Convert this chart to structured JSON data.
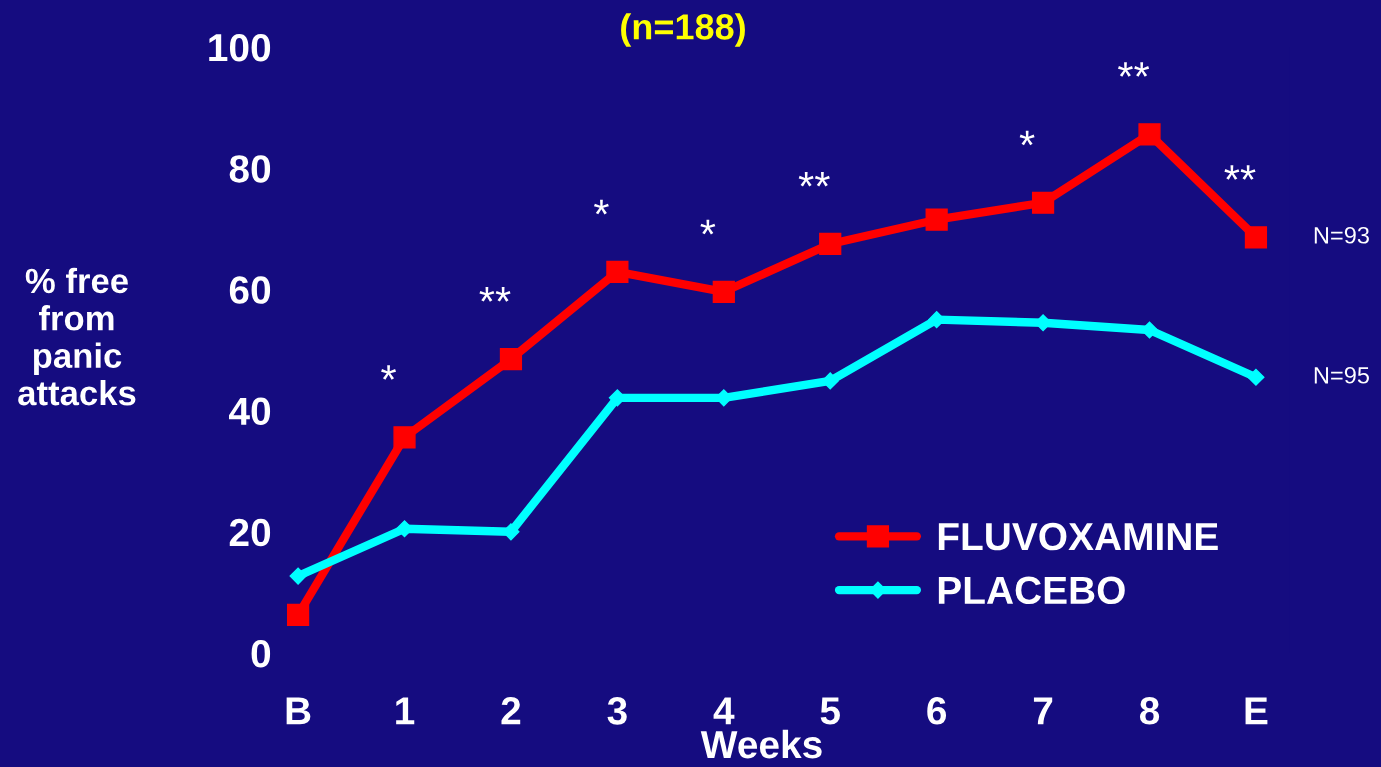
{
  "chart_data": {
    "type": "line",
    "title": "(n=188)",
    "xlabel": "Weeks",
    "ylabel": "% free\nfrom\npanic\nattacks",
    "categories": [
      "B",
      "1",
      "2",
      "3",
      "4",
      "5",
      "6",
      "7",
      "8",
      "E"
    ],
    "ylim": [
      0,
      100
    ],
    "yticks": [
      0,
      20,
      40,
      60,
      80,
      100
    ],
    "grid": false,
    "legend": "bottom right",
    "line_style": "solid",
    "series": [
      {
        "name": "FLUVOXAMINE",
        "color": "#ff0000",
        "marker": "square",
        "values": [
          6.3,
          35.6,
          48.5,
          62.9,
          59.6,
          67.5,
          71.5,
          74.3,
          85.6,
          68.6
        ]
      },
      {
        "name": "PLACEBO",
        "color": "#00ffff",
        "marker": "diamond",
        "values": [
          12.7,
          20.5,
          20,
          42.1,
          42.1,
          44.9,
          55,
          54.5,
          53.3,
          45.5
        ]
      }
    ],
    "annotations": [
      {
        "text": "*",
        "x": "1",
        "y": 35.6
      },
      {
        "text": "**",
        "x": "2",
        "y": 48.5
      },
      {
        "text": "*",
        "x": "3",
        "y": 62.9
      },
      {
        "text": "*",
        "x": "4",
        "y": 59.6
      },
      {
        "text": "**",
        "x": "5",
        "y": 67.5
      },
      {
        "text": "*",
        "x": "7",
        "y": 74.3
      },
      {
        "text": "**",
        "x": "8",
        "y": 85.6
      },
      {
        "text": "**",
        "x": "E",
        "y": 68.6
      },
      {
        "text": "N=93",
        "x": "E",
        "y": 68.6
      },
      {
        "text": "N=95",
        "x": "E",
        "y": 45.5
      }
    ]
  }
}
